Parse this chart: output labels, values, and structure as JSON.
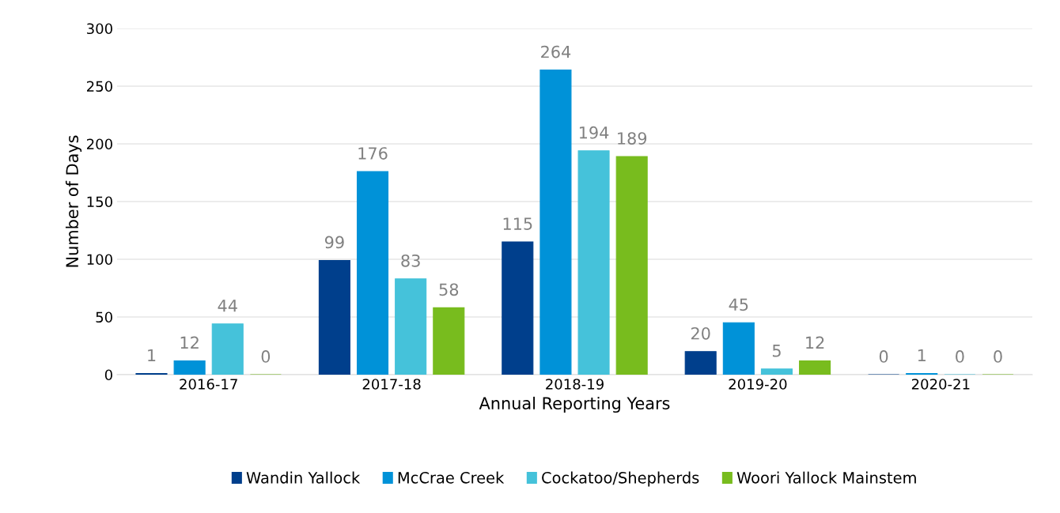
{
  "chart_data": {
    "type": "bar",
    "xlabel": "Annual Reporting Years",
    "ylabel": "Number of Days",
    "categories": [
      "2016-17",
      "2017-18",
      "2018-19",
      "2019-20",
      "2020-21"
    ],
    "series": [
      {
        "name": "Wandin Yallock",
        "color": "#003f8c",
        "values": [
          1,
          99,
          115,
          20,
          0
        ]
      },
      {
        "name": "McCrae Creek",
        "color": "#0092d8",
        "values": [
          12,
          176,
          264,
          45,
          1
        ]
      },
      {
        "name": "Cockatoo/Shepherds",
        "color": "#45c2da",
        "values": [
          44,
          83,
          194,
          5,
          0
        ]
      },
      {
        "name": "Woori Yallock Mainstem",
        "color": "#78bc1e",
        "values": [
          0,
          58,
          189,
          12,
          0
        ]
      }
    ],
    "ylim": [
      0,
      300
    ],
    "yticks": [
      0,
      50,
      100,
      150,
      200,
      250,
      300
    ],
    "grid": "y",
    "legend": "bottom",
    "data_labels": true
  }
}
